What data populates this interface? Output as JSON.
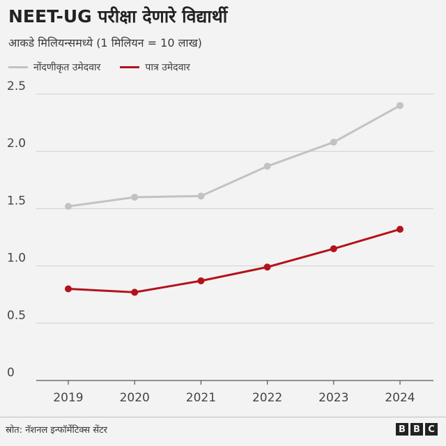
{
  "header": {
    "title": "NEET-UG परीक्षा देणारे विद्यार्थी",
    "subtitle": "आकडे मिलियन्समध्ये (1 मिलियन = 10 लाख)"
  },
  "legend": [
    {
      "label": "नोंदणीकृत उमेदवार",
      "color": "#c2c2c2"
    },
    {
      "label": "पात्र उमेदवार",
      "color": "#b3121b"
    }
  ],
  "footer": {
    "source": "स्रोत: नॅशनल इन्फॉर्मेटिक्स सेंटर",
    "logo_letters": [
      "B",
      "B",
      "C"
    ]
  },
  "chart_data": {
    "type": "line",
    "title": "NEET-UG परीक्षा देणारे विद्यार्थी",
    "subtitle": "आकडे मिलियन्समध्ये (1 मिलियन = 10 लाख)",
    "x": [
      "2019",
      "2020",
      "2021",
      "2022",
      "2023",
      "2024"
    ],
    "series": [
      {
        "name": "नोंदणीकृत उमेदवार",
        "color": "#c2c2c2",
        "values": [
          1.52,
          1.6,
          1.61,
          1.87,
          2.08,
          2.4
        ]
      },
      {
        "name": "पात्र उमेदवार",
        "color": "#b3121b",
        "values": [
          0.8,
          0.77,
          0.87,
          0.99,
          1.15,
          1.32
        ]
      }
    ],
    "ylim": [
      0,
      2.5
    ],
    "yticks": [
      "0",
      "0.5",
      "1.0",
      "1.5",
      "2.0",
      "2.5"
    ],
    "grid": true,
    "legend_position": "top-left"
  }
}
